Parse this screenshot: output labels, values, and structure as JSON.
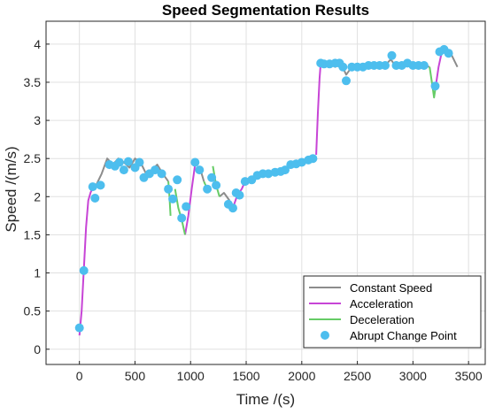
{
  "chart_data": {
    "type": "line",
    "title": "Speed Segmentation Results",
    "xlabel": "Time /(s)",
    "ylabel": "Speed /(m/s)",
    "xlim": [
      -300,
      3650
    ],
    "ylim": [
      -0.2,
      4.3
    ],
    "xticks": [
      0,
      500,
      1000,
      1500,
      2000,
      2500,
      3000,
      3500
    ],
    "yticks": [
      0,
      0.5,
      1,
      1.5,
      2,
      2.5,
      3,
      3.5,
      4
    ],
    "grid": true,
    "legend_position": "bottom-right",
    "series": [
      {
        "name": "Constant Speed",
        "color": "#8c8c8c",
        "segments": [
          [
            [
              150,
              2.15
            ],
            [
              200,
              2.3
            ],
            [
              250,
              2.5
            ],
            [
              300,
              2.42
            ],
            [
              350,
              2.5
            ],
            [
              400,
              2.45
            ],
            [
              450,
              2.38
            ],
            [
              500,
              2.5
            ],
            [
              550,
              2.45
            ],
            [
              600,
              2.3
            ],
            [
              650,
              2.35
            ],
            [
              700,
              2.42
            ],
            [
              750,
              2.3
            ],
            [
              800,
              2.2
            ]
          ],
          [
            [
              1090,
              2.35
            ],
            [
              1120,
              2.2
            ]
          ],
          [
            [
              1260,
              2.0
            ],
            [
              1300,
              2.05
            ],
            [
              1350,
              1.95
            ]
          ],
          [
            [
              1490,
              2.2
            ],
            [
              1550,
              2.25
            ],
            [
              1600,
              2.3
            ],
            [
              1650,
              2.28
            ],
            [
              1700,
              2.32
            ],
            [
              1750,
              2.3
            ],
            [
              1800,
              2.35
            ],
            [
              1850,
              2.38
            ],
            [
              1900,
              2.4
            ],
            [
              1950,
              2.42
            ],
            [
              2000,
              2.45
            ],
            [
              2050,
              2.5
            ],
            [
              2100,
              2.52
            ]
          ],
          [
            [
              2170,
              3.75
            ],
            [
              2200,
              3.72
            ],
            [
              2250,
              3.78
            ],
            [
              2300,
              3.7
            ],
            [
              2350,
              3.75
            ],
            [
              2400,
              3.6
            ],
            [
              2450,
              3.7
            ],
            [
              2500,
              3.72
            ],
            [
              2550,
              3.68
            ],
            [
              2600,
              3.72
            ],
            [
              2650,
              3.7
            ],
            [
              2700,
              3.75
            ],
            [
              2750,
              3.72
            ],
            [
              2800,
              3.8
            ],
            [
              2850,
              3.7
            ],
            [
              2900,
              3.75
            ],
            [
              2950,
              3.72
            ],
            [
              3000,
              3.7
            ],
            [
              3050,
              3.68
            ],
            [
              3100,
              3.72
            ],
            [
              3150,
              3.7
            ]
          ],
          [
            [
              3260,
              3.9
            ],
            [
              3300,
              3.88
            ],
            [
              3350,
              3.85
            ],
            [
              3400,
              3.7
            ]
          ]
        ]
      },
      {
        "name": "Acceleration",
        "color": "#c744d6",
        "segments": [
          [
            [
              0,
              0.18
            ],
            [
              20,
              0.5
            ],
            [
              40,
              1.05
            ],
            [
              60,
              1.6
            ],
            [
              80,
              1.95
            ],
            [
              100,
              2.05
            ],
            [
              120,
              2.12
            ],
            [
              150,
              2.15
            ]
          ],
          [
            [
              950,
              1.5
            ],
            [
              980,
              1.75
            ],
            [
              1010,
              2.1
            ],
            [
              1040,
              2.42
            ],
            [
              1060,
              2.45
            ]
          ],
          [
            [
              1380,
              1.85
            ],
            [
              1420,
              2.02
            ],
            [
              1460,
              2.1
            ],
            [
              1490,
              2.2
            ]
          ],
          [
            [
              2130,
              2.55
            ],
            [
              2145,
              3.1
            ],
            [
              2160,
              3.55
            ],
            [
              2170,
              3.75
            ]
          ],
          [
            [
              3200,
              3.4
            ],
            [
              3230,
              3.7
            ],
            [
              3260,
              3.9
            ]
          ]
        ]
      },
      {
        "name": "Deceleration",
        "color": "#66cc66",
        "segments": [
          [
            [
              800,
              2.2
            ],
            [
              810,
              2.0
            ],
            [
              820,
              1.75
            ]
          ],
          [
            [
              860,
              2.1
            ],
            [
              890,
              1.85
            ],
            [
              920,
              1.7
            ],
            [
              950,
              1.5
            ]
          ],
          [
            [
              1120,
              2.2
            ],
            [
              1150,
              2.1
            ]
          ],
          [
            [
              1200,
              2.4
            ],
            [
              1230,
              2.15
            ],
            [
              1260,
              2.0
            ]
          ],
          [
            [
              3150,
              3.7
            ],
            [
              3175,
              3.45
            ],
            [
              3190,
              3.3
            ],
            [
              3200,
              3.4
            ]
          ]
        ]
      },
      {
        "name": "Abrupt Change Point",
        "color": "#4dbeee",
        "marker": "circle",
        "points": [
          [
            0,
            0.28
          ],
          [
            40,
            1.03
          ],
          [
            120,
            2.13
          ],
          [
            140,
            1.98
          ],
          [
            190,
            2.15
          ],
          [
            270,
            2.42
          ],
          [
            320,
            2.4
          ],
          [
            360,
            2.45
          ],
          [
            400,
            2.35
          ],
          [
            440,
            2.46
          ],
          [
            500,
            2.38
          ],
          [
            540,
            2.45
          ],
          [
            580,
            2.25
          ],
          [
            630,
            2.3
          ],
          [
            680,
            2.35
          ],
          [
            740,
            2.3
          ],
          [
            800,
            2.1
          ],
          [
            840,
            1.97
          ],
          [
            880,
            2.22
          ],
          [
            920,
            1.72
          ],
          [
            960,
            1.87
          ],
          [
            1040,
            2.45
          ],
          [
            1080,
            2.35
          ],
          [
            1150,
            2.1
          ],
          [
            1190,
            2.25
          ],
          [
            1230,
            2.15
          ],
          [
            1340,
            1.9
          ],
          [
            1380,
            1.85
          ],
          [
            1410,
            2.05
          ],
          [
            1440,
            2.02
          ],
          [
            1490,
            2.2
          ],
          [
            1550,
            2.22
          ],
          [
            1600,
            2.28
          ],
          [
            1650,
            2.3
          ],
          [
            1700,
            2.3
          ],
          [
            1760,
            2.32
          ],
          [
            1810,
            2.33
          ],
          [
            1850,
            2.35
          ],
          [
            1900,
            2.42
          ],
          [
            1950,
            2.43
          ],
          [
            2000,
            2.45
          ],
          [
            2060,
            2.48
          ],
          [
            2100,
            2.5
          ],
          [
            2170,
            3.75
          ],
          [
            2200,
            3.74
          ],
          [
            2250,
            3.74
          ],
          [
            2300,
            3.75
          ],
          [
            2340,
            3.75
          ],
          [
            2370,
            3.7
          ],
          [
            2400,
            3.52
          ],
          [
            2450,
            3.7
          ],
          [
            2500,
            3.7
          ],
          [
            2550,
            3.7
          ],
          [
            2600,
            3.72
          ],
          [
            2650,
            3.72
          ],
          [
            2700,
            3.72
          ],
          [
            2750,
            3.72
          ],
          [
            2810,
            3.85
          ],
          [
            2850,
            3.72
          ],
          [
            2900,
            3.72
          ],
          [
            2950,
            3.75
          ],
          [
            3000,
            3.72
          ],
          [
            3050,
            3.72
          ],
          [
            3100,
            3.72
          ],
          [
            3200,
            3.45
          ],
          [
            3240,
            3.9
          ],
          [
            3280,
            3.93
          ],
          [
            3320,
            3.88
          ]
        ]
      }
    ]
  }
}
